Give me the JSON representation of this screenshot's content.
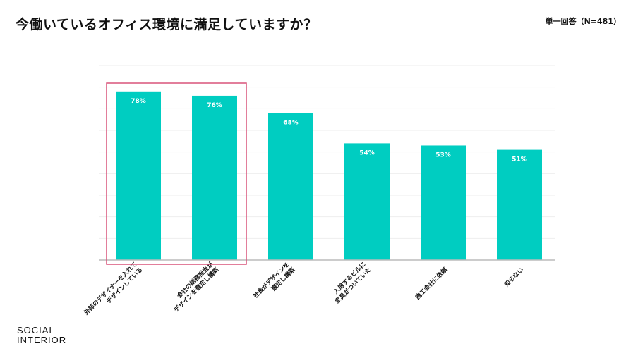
{
  "header": {
    "title": "今働いているオフィス環境に満足していますか？",
    "note": "単一回答（N=481）"
  },
  "brand": {
    "line1": "SOCIAL",
    "line2": "INTERIOR"
  },
  "colors": {
    "bar": "#00CDC1",
    "highlight_box": "#D9537A",
    "grid": "#EEEEEE",
    "axis": "#BBBBBB",
    "value_label": "#FFFFFF"
  },
  "chart_data": {
    "type": "bar",
    "categories": [
      "外部のデザイナーを入れて\nデザインしている",
      "会社の総務担当が\nデザインを選定し構築",
      "社長がデザインを\n選定し構築",
      "入居するビルに\n家具がついていた",
      "施工会社に依頼",
      "知らない"
    ],
    "values": [
      78,
      76,
      68,
      54,
      53,
      51
    ],
    "value_labels": [
      "78%",
      "76%",
      "68%",
      "54%",
      "53%",
      "51%"
    ],
    "ylim": [
      0,
      90
    ],
    "grid": true,
    "highlighted_categories": [
      0,
      1
    ]
  }
}
